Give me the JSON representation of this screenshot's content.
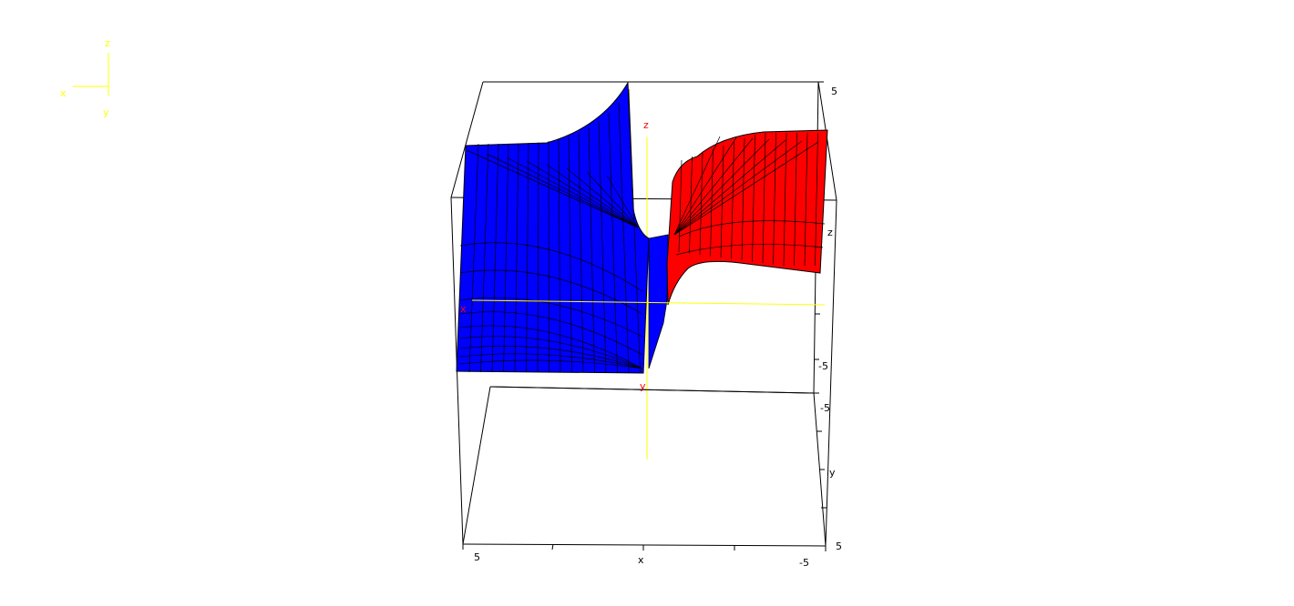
{
  "colors": {
    "background": "#ffffff",
    "box_edge": "#000000",
    "axis_line": "#ffff00",
    "axis_label_inner": "#ff0000",
    "series_negative_side": "#0000ff",
    "series_positive_side": "#ff0000",
    "mesh": "#000000"
  },
  "orientation_triad": {
    "x_label": "x",
    "y_label": "y",
    "z_label": "z"
  },
  "inner_axes": {
    "x_label": "x",
    "y_label": "y",
    "z_label": "z"
  },
  "chart_data": {
    "type": "surface3d",
    "axes": {
      "x": {
        "label": "x",
        "range": [
          5,
          -5
        ],
        "tick_labels": [
          "5",
          "x",
          "-5"
        ]
      },
      "y": {
        "label": "y",
        "range": [
          -5,
          5
        ],
        "tick_labels": [
          "-5",
          "y",
          "5"
        ]
      },
      "z": {
        "label": "z",
        "range": [
          -5,
          5
        ],
        "tick_labels": [
          "5",
          "z",
          "-5"
        ]
      }
    },
    "series": [
      {
        "color": "#0000ff",
        "side": "x > 0",
        "shape": "surface rising steeply toward a pole near x = 0, flattening near z ≈ 3 at x = 5"
      },
      {
        "color": "#ff0000",
        "side": "x < 0",
        "shape": "surface rising from a pole near x = 0, flattening near z ≈ 3 at x = -5"
      }
    ],
    "box": true,
    "grid": false
  }
}
